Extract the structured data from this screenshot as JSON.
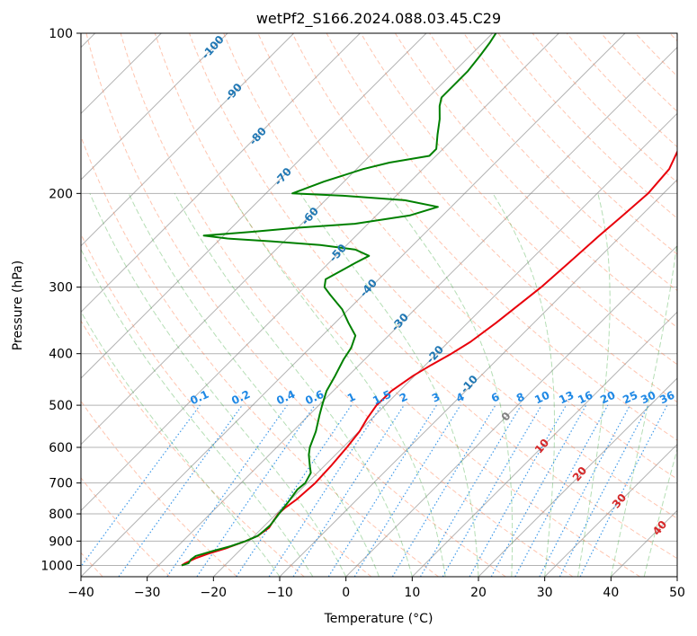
{
  "chart_data": {
    "type": "skew-t",
    "title": "wetPf2_S166.2024.088.03.45.C29",
    "xlabel": "Temperature (°C)",
    "ylabel": "Pressure (hPa)",
    "xlim": [
      -40,
      50
    ],
    "ylim_hpa": [
      1050,
      100
    ],
    "x_ticks": [
      "−40",
      "−30",
      "−20",
      "−10",
      "0",
      "10",
      "20",
      "30",
      "40",
      "50"
    ],
    "y_ticks": [
      {
        "value": 100,
        "label": "100"
      },
      {
        "value": 200,
        "label": "200"
      },
      {
        "value": 300,
        "label": "300"
      },
      {
        "value": 400,
        "label": "400"
      },
      {
        "value": 500,
        "label": "500"
      },
      {
        "value": 600,
        "label": "600"
      },
      {
        "value": 700,
        "label": "700"
      },
      {
        "value": 800,
        "label": "800"
      },
      {
        "value": 900,
        "label": "900"
      },
      {
        "value": 1000,
        "label": "1000"
      }
    ],
    "temperature_profile": {
      "color": "#e8000b",
      "points": [
        [
          1000,
          -26.5
        ],
        [
          990,
          -26.3
        ],
        [
          970,
          -25.5
        ],
        [
          950,
          -24.2
        ],
        [
          930,
          -22.5
        ],
        [
          900,
          -20.5
        ],
        [
          880,
          -19.5
        ],
        [
          850,
          -19.0
        ],
        [
          830,
          -19.3
        ],
        [
          800,
          -19.7
        ],
        [
          780,
          -19.6
        ],
        [
          750,
          -19.1
        ],
        [
          700,
          -18.8
        ],
        [
          650,
          -19.0
        ],
        [
          600,
          -19.4
        ],
        [
          560,
          -19.9
        ],
        [
          530,
          -20.7
        ],
        [
          500,
          -21.3
        ],
        [
          470,
          -21.2
        ],
        [
          440,
          -20.2
        ],
        [
          420,
          -19.1
        ],
        [
          400,
          -17.8
        ],
        [
          380,
          -16.7
        ],
        [
          350,
          -15.7
        ],
        [
          300,
          -14.3
        ],
        [
          270,
          -13.8
        ],
        [
          240,
          -13.3
        ],
        [
          220,
          -12.8
        ],
        [
          200,
          -12.3
        ],
        [
          180,
          -12.8
        ],
        [
          160,
          -15.0
        ],
        [
          140,
          -17.5
        ],
        [
          130,
          -18.3
        ],
        [
          120,
          -21.0
        ],
        [
          110,
          -24.0
        ],
        [
          100,
          -27.5
        ]
      ]
    },
    "dewpoint_profile": {
      "color": "#008000",
      "points": [
        [
          1000,
          -26.5
        ],
        [
          990,
          -25.8
        ],
        [
          975,
          -26.0
        ],
        [
          960,
          -25.8
        ],
        [
          940,
          -24.0
        ],
        [
          920,
          -22.0
        ],
        [
          900,
          -20.5
        ],
        [
          880,
          -19.5
        ],
        [
          860,
          -19.3
        ],
        [
          840,
          -19.2
        ],
        [
          800,
          -19.6
        ],
        [
          760,
          -20.0
        ],
        [
          720,
          -20.5
        ],
        [
          700,
          -20.3
        ],
        [
          670,
          -21.0
        ],
        [
          650,
          -22.2
        ],
        [
          620,
          -24.0
        ],
        [
          600,
          -25.0
        ],
        [
          560,
          -26.5
        ],
        [
          520,
          -28.5
        ],
        [
          500,
          -29.5
        ],
        [
          470,
          -31.0
        ],
        [
          440,
          -32.0
        ],
        [
          410,
          -33.2
        ],
        [
          390,
          -33.8
        ],
        [
          370,
          -35.0
        ],
        [
          350,
          -38.0
        ],
        [
          330,
          -41.0
        ],
        [
          310,
          -45.0
        ],
        [
          300,
          -47.0
        ],
        [
          290,
          -48.0
        ],
        [
          280,
          -47.0
        ],
        [
          270,
          -46.0
        ],
        [
          262,
          -45.0
        ],
        [
          255,
          -48.0
        ],
        [
          250,
          -54.0
        ],
        [
          246,
          -62.0
        ],
        [
          243,
          -69.0
        ],
        [
          240,
          -73.0
        ],
        [
          236,
          -66.0
        ],
        [
          232,
          -60.0
        ],
        [
          228,
          -52.0
        ],
        [
          220,
          -45.0
        ],
        [
          212,
          -42.0
        ],
        [
          206,
          -48.0
        ],
        [
          202,
          -58.0
        ],
        [
          200,
          -66.0
        ],
        [
          190,
          -63.0
        ],
        [
          180,
          -59.0
        ],
        [
          175,
          -56.0
        ],
        [
          170,
          -51.0
        ],
        [
          165,
          -51.0
        ],
        [
          155,
          -53.0
        ],
        [
          145,
          -55.0
        ],
        [
          137,
          -57.0
        ],
        [
          132,
          -58.0
        ],
        [
          125,
          -58.0
        ],
        [
          118,
          -58.0
        ],
        [
          110,
          -58.5
        ],
        [
          104,
          -59.0
        ],
        [
          100,
          -59.5
        ]
      ]
    },
    "dry_adiabat_labels": [
      "-100",
      "-90",
      "-80",
      "-70",
      "-60",
      "-50",
      "-40",
      "-30",
      "-20",
      "-10"
    ],
    "mixing_ratio_labels": [
      "0.1",
      "0.2",
      "0.4",
      "0.6",
      "1",
      "1.5",
      "2",
      "3",
      "4",
      "6",
      "8",
      "10",
      "13",
      "16",
      "20",
      "25",
      "30",
      "36"
    ],
    "moist_adiabat_labels": [
      "0",
      "10",
      "20",
      "30",
      "40"
    ],
    "colors": {
      "dry_adiabat": "#ff7f50",
      "moist_adiabat": "#2ca02c",
      "mixing_ratio": "#1e88e5",
      "isotherm": "#808080",
      "dry_label": "#1f77b4",
      "mixing_label": "#1e88e5",
      "moist_zero_label": "#808080",
      "moist_label": "#d62728"
    },
    "grid": true
  }
}
